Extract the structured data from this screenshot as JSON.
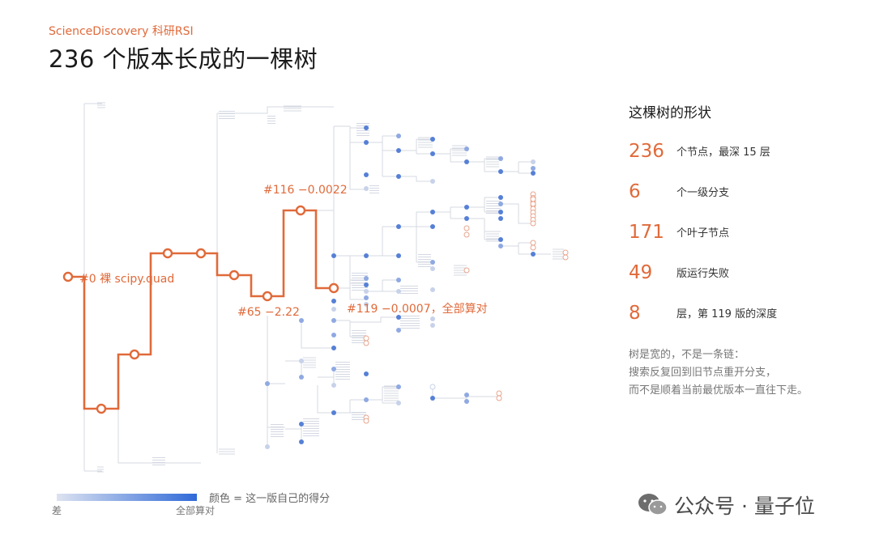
{
  "header": {
    "brand": "ScienceDiscovery 科研RSI",
    "title": "236 个版本长成的一棵树"
  },
  "annotations": {
    "root": "#0 裸 scipy.quad",
    "v65": "#65 −2.22",
    "v116": "#116 −0.0022",
    "v119": "#119 −0.0007，全部算对"
  },
  "sidebar": {
    "heading": "这棵树的形状",
    "stats": [
      {
        "value": "236",
        "label": "个节点，最深 15 层"
      },
      {
        "value": "6",
        "label": "个一级分支"
      },
      {
        "value": "171",
        "label": "个叶子节点"
      },
      {
        "value": "49",
        "label": "版运行失败"
      },
      {
        "value": "8",
        "label": "层，第 119 版的深度"
      }
    ],
    "note": [
      "树是宽的，不是一条链：",
      "搜索反复回到旧节点重开分支，",
      "而不是顺着当前最优版本一直往下走。"
    ]
  },
  "legend": {
    "label": "颜色 = 这一版自己的得分",
    "low": "差",
    "high": "全部算对"
  },
  "watermark": {
    "text": "公众号 · 量子位"
  },
  "colors": {
    "accent": "#e06a3a",
    "score_low": "#dde3f1",
    "score_high": "#2f69d8",
    "edge": "#d4d8e2"
  }
}
